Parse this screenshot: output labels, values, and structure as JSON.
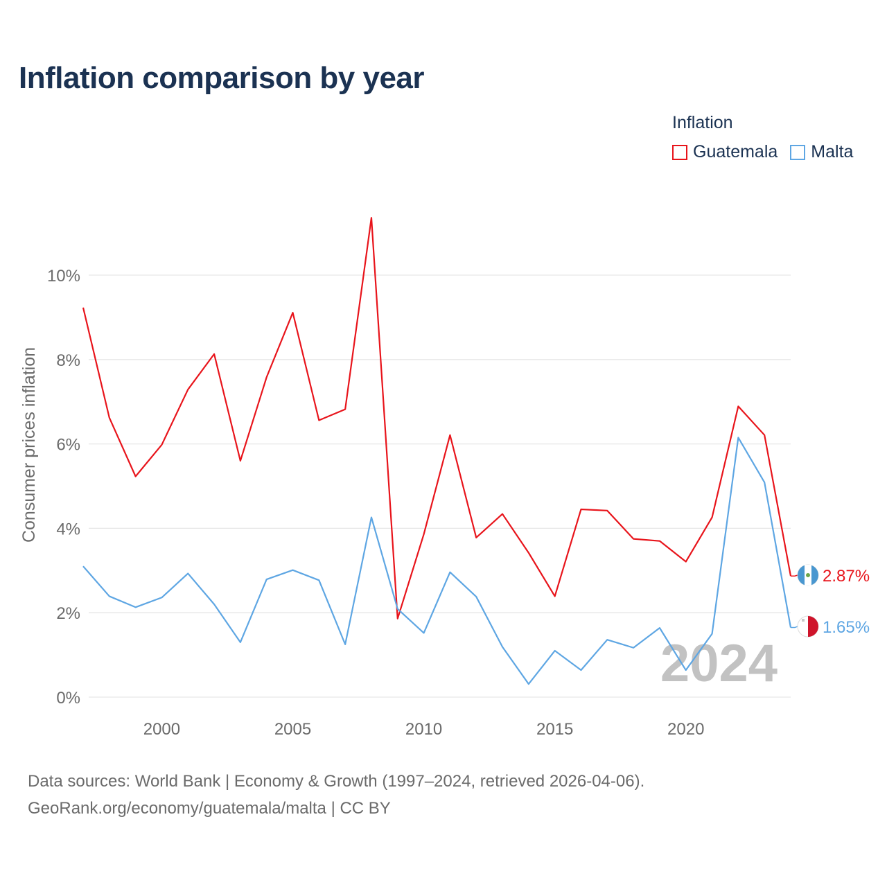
{
  "title": "Inflation comparison by year",
  "legend": {
    "title": "Inflation",
    "items": [
      {
        "label": "Guatemala",
        "color": "#e8141b"
      },
      {
        "label": "Malta",
        "color": "#5ea6e3"
      }
    ]
  },
  "year_watermark": "2024",
  "end_labels": {
    "guatemala": "2.87%",
    "malta": "1.65%"
  },
  "footer": {
    "line1": "Data sources: World Bank | Economy & Growth (1997–2024, retrieved 2026-04-06).",
    "line2": "GeoRank.org/economy/guatemala/malta | CC BY"
  },
  "chart_data": {
    "type": "line",
    "title": "Inflation comparison by year",
    "xlabel": "",
    "ylabel": "Consumer prices inflation",
    "xlim": [
      1997,
      2024
    ],
    "ylim": [
      0,
      11.5
    ],
    "yticks": [
      0,
      2,
      4,
      6,
      8,
      10
    ],
    "ytick_labels": [
      "0%",
      "2%",
      "4%",
      "6%",
      "8%",
      "10%"
    ],
    "xticks": [
      2000,
      2005,
      2010,
      2015,
      2020
    ],
    "xtick_labels": [
      "2000",
      "2005",
      "2010",
      "2015",
      "2020"
    ],
    "grid": true,
    "legend_position": "top-right",
    "x": [
      1997,
      1998,
      1999,
      2000,
      2001,
      2002,
      2003,
      2004,
      2005,
      2006,
      2007,
      2008,
      2009,
      2010,
      2011,
      2012,
      2013,
      2014,
      2015,
      2016,
      2017,
      2018,
      2019,
      2020,
      2021,
      2022,
      2023,
      2024
    ],
    "series": [
      {
        "name": "Guatemala",
        "color": "#e8141b",
        "values": [
          9.23,
          6.62,
          5.23,
          5.98,
          7.29,
          8.13,
          5.6,
          7.58,
          9.11,
          6.56,
          6.82,
          11.36,
          1.86,
          3.86,
          6.21,
          3.78,
          4.34,
          3.42,
          2.39,
          4.45,
          4.42,
          3.75,
          3.7,
          3.21,
          4.26,
          6.89,
          6.21,
          2.87
        ]
      },
      {
        "name": "Malta",
        "color": "#5ea6e3",
        "values": [
          3.1,
          2.39,
          2.13,
          2.36,
          2.93,
          2.2,
          1.3,
          2.79,
          3.01,
          2.77,
          1.25,
          4.26,
          2.09,
          1.52,
          2.96,
          2.38,
          1.19,
          0.31,
          1.1,
          0.64,
          1.36,
          1.17,
          1.64,
          0.64,
          1.5,
          6.15,
          5.09,
          1.65
        ]
      }
    ]
  }
}
